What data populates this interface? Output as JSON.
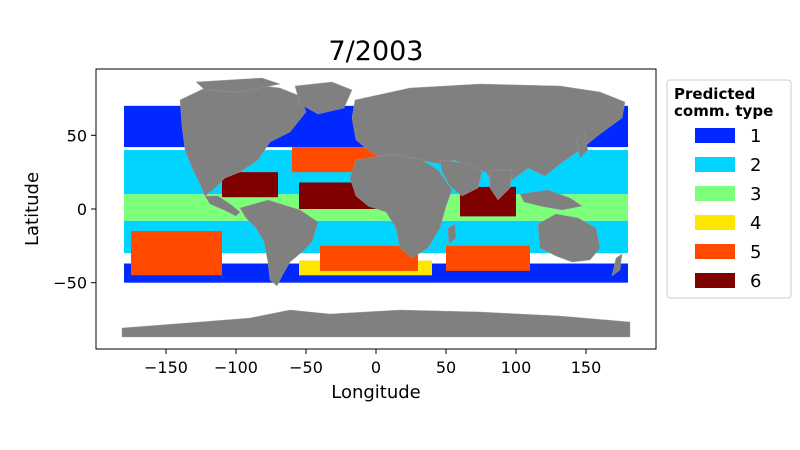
{
  "title": "7/2003",
  "colors": {
    "land": "#808080",
    "ocean_bg": "#ffffff",
    "frame": "#000000"
  },
  "chart_data": {
    "type": "scatter",
    "title": "7/2003",
    "xlabel": "Longitude",
    "ylabel": "Latitude",
    "xlim": [
      -200,
      200
    ],
    "ylim": [
      -95,
      95
    ],
    "x_ticks": [
      -150,
      -100,
      -50,
      0,
      50,
      100,
      150
    ],
    "x_tick_labels": [
      "−150",
      "−100",
      "−50",
      "0",
      "50",
      "100",
      "150"
    ],
    "y_ticks": [
      50,
      0,
      -50
    ],
    "y_tick_labels": [
      "50",
      "0",
      "−50"
    ],
    "grid": false,
    "legend": {
      "placement": "outside-right",
      "title_line1": "Predicted",
      "title_line2": "comm. type",
      "entries": [
        {
          "label": "1",
          "color": "#0028ff"
        },
        {
          "label": "2",
          "color": "#00d4ff"
        },
        {
          "label": "3",
          "color": "#7dff7a"
        },
        {
          "label": "4",
          "color": "#ffe600"
        },
        {
          "label": "5",
          "color": "#ff4a00"
        },
        {
          "label": "6",
          "color": "#800000"
        }
      ]
    },
    "series": [
      {
        "name": "1",
        "regions": [
          [
            -180,
            180,
            42,
            70
          ],
          [
            -180,
            180,
            -50,
            -37
          ]
        ]
      },
      {
        "name": "2",
        "regions": [
          [
            -180,
            180,
            10,
            40
          ],
          [
            -180,
            180,
            -30,
            -8
          ]
        ]
      },
      {
        "name": "3",
        "regions": [
          [
            -180,
            180,
            -8,
            10
          ]
        ]
      },
      {
        "name": "4",
        "regions": [
          [
            -55,
            40,
            -45,
            -35
          ]
        ]
      },
      {
        "name": "5",
        "regions": [
          [
            -175,
            -110,
            -45,
            -15
          ],
          [
            -60,
            5,
            25,
            42
          ],
          [
            -40,
            30,
            -42,
            -25
          ],
          [
            50,
            110,
            -42,
            -25
          ]
        ]
      },
      {
        "name": "6",
        "regions": [
          [
            -110,
            -70,
            8,
            25
          ],
          [
            -55,
            0,
            0,
            18
          ],
          [
            60,
            100,
            -5,
            15
          ]
        ]
      }
    ]
  }
}
